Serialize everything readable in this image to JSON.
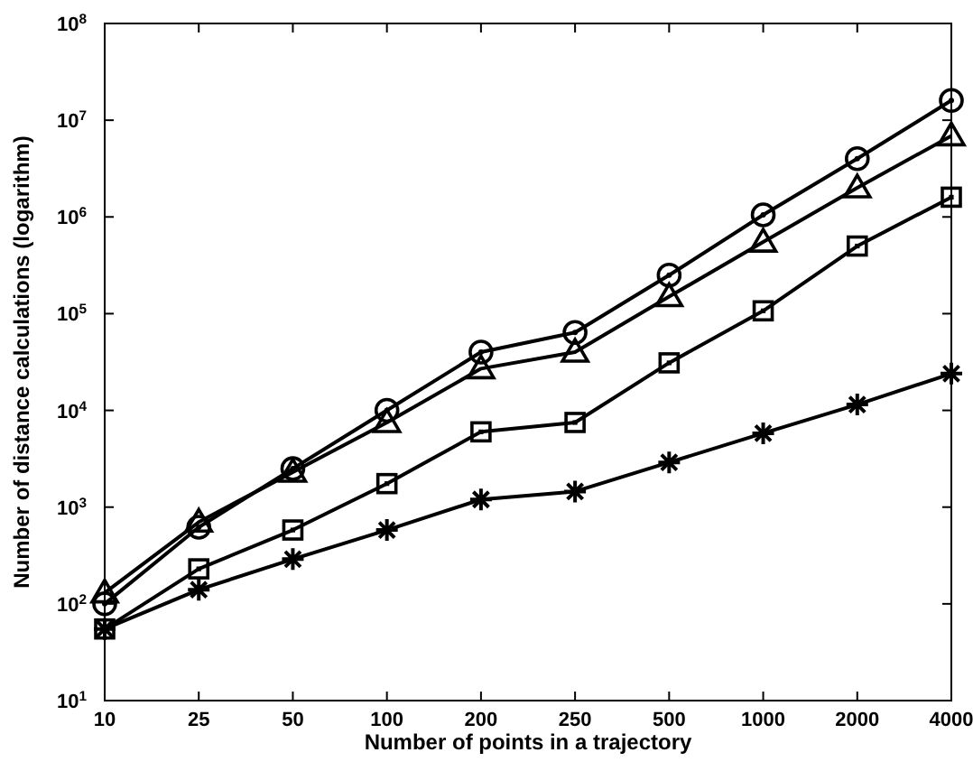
{
  "chart_data": {
    "type": "line",
    "xlabel": "Number of points in a trajectory",
    "ylabel": "Number of distance calculations (logarithm)",
    "categories": [
      "10",
      "25",
      "50",
      "100",
      "200",
      "250",
      "500",
      "1000",
      "2000",
      "4000"
    ],
    "log": "y",
    "ylim": [
      10,
      100000000
    ],
    "yticks": [
      {
        "value": 10,
        "label": "10$^{1}$"
      },
      {
        "value": 100,
        "label": "10$^{2}$"
      },
      {
        "value": 1000,
        "label": "10$^{3}$"
      },
      {
        "value": 10000,
        "label": "10$^{4}$"
      },
      {
        "value": 100000,
        "label": "10$^{5}$"
      },
      {
        "value": 1000000,
        "label": "10$^{6}$"
      },
      {
        "value": 10000000,
        "label": "10$^{7}$"
      },
      {
        "value": 100000000,
        "label": "10$^{8}$"
      }
    ],
    "grid": false,
    "line_style": "solid",
    "series": [
      {
        "color": "#000000",
        "marker": "circle",
        "values": [
          100,
          620,
          2500,
          10000,
          40000,
          64000,
          250000,
          1050000,
          4000000,
          16000000
        ]
      },
      {
        "color": "#000000",
        "marker": "triangle",
        "values": [
          130,
          700,
          2300,
          7500,
          27000,
          40000,
          150000,
          550000,
          2000000,
          6900000
        ]
      },
      {
        "color": "#000000",
        "marker": "square",
        "values": [
          55,
          230,
          580,
          1750,
          6000,
          7500,
          31000,
          107000,
          500000,
          1600000
        ]
      },
      {
        "color": "#000000",
        "marker": "cross",
        "values": [
          55,
          140,
          290,
          580,
          1200,
          1450,
          2900,
          5800,
          11500,
          24000
        ]
      }
    ]
  }
}
